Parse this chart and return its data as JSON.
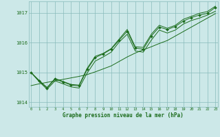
{
  "xlabel": "Graphe pression niveau de la mer (hPa)",
  "hours": [
    0,
    1,
    2,
    3,
    4,
    5,
    6,
    7,
    8,
    9,
    10,
    11,
    12,
    13,
    14,
    15,
    16,
    17,
    18,
    19,
    20,
    21,
    22,
    23
  ],
  "series_main": [
    1015.0,
    1014.72,
    1014.48,
    1014.78,
    1014.68,
    1014.58,
    1014.55,
    1015.1,
    1015.5,
    1015.62,
    1015.78,
    1016.08,
    1016.38,
    1015.82,
    1015.78,
    1016.22,
    1016.52,
    1016.44,
    1016.54,
    1016.72,
    1016.84,
    1016.92,
    1016.98,
    1017.18
  ],
  "series_min": [
    1015.0,
    1014.7,
    1014.44,
    1014.72,
    1014.62,
    1014.52,
    1014.48,
    1014.98,
    1015.38,
    1015.52,
    1015.68,
    1016.02,
    1016.28,
    1015.72,
    1015.68,
    1016.08,
    1016.42,
    1016.32,
    1016.42,
    1016.62,
    1016.74,
    1016.82,
    1016.92,
    1017.05
  ],
  "series_max": [
    1015.0,
    1014.74,
    1014.5,
    1014.8,
    1014.7,
    1014.6,
    1014.58,
    1015.14,
    1015.54,
    1015.64,
    1015.8,
    1016.12,
    1016.44,
    1015.86,
    1015.84,
    1016.28,
    1016.58,
    1016.48,
    1016.58,
    1016.78,
    1016.88,
    1016.98,
    1017.04,
    1017.22
  ],
  "series_trend": [
    1014.56,
    1014.62,
    1014.67,
    1014.72,
    1014.77,
    1014.82,
    1014.87,
    1014.93,
    1015.02,
    1015.12,
    1015.22,
    1015.37,
    1015.52,
    1015.65,
    1015.76,
    1015.86,
    1015.97,
    1016.07,
    1016.22,
    1016.37,
    1016.52,
    1016.67,
    1016.82,
    1016.97
  ],
  "bg_color": "#cce8e8",
  "line_color": "#1a6b1a",
  "grid_color": "#88bbbb",
  "label_color": "#1a6b1a",
  "ylim": [
    1013.85,
    1017.38
  ],
  "yticks": [
    1014,
    1015,
    1016,
    1017
  ],
  "figsize": [
    3.2,
    2.0
  ],
  "dpi": 100
}
